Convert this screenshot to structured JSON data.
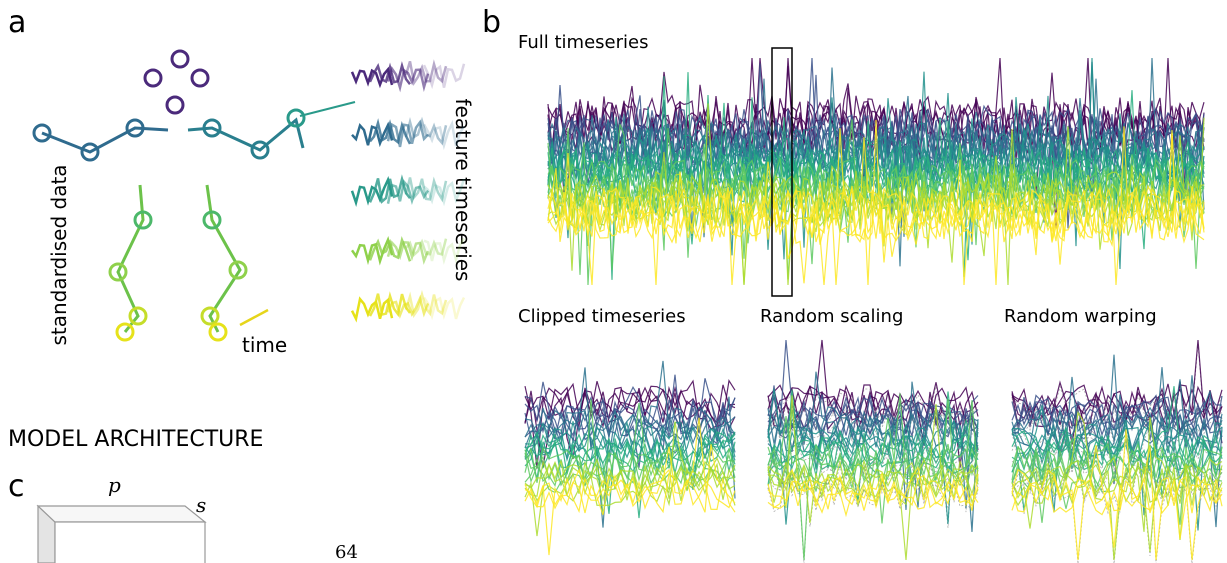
{
  "panel_a": {
    "label": "a",
    "y_label": "standardised data",
    "x_label": "time",
    "right_label": "feature timeseries"
  },
  "panel_b": {
    "label": "b",
    "top_title": "Full timeseries",
    "titles": [
      "Clipped timeseries",
      "Random scaling",
      "Random warping"
    ]
  },
  "section_title": "MODEL ARCHITECTURE",
  "panel_c": {
    "label": "c",
    "dim_p": "p",
    "dim_s": "s",
    "size": "64"
  }
}
